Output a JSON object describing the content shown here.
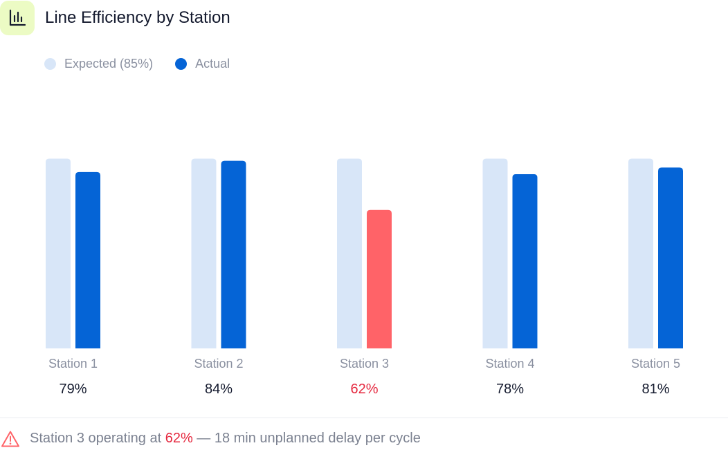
{
  "header": {
    "title": "Line Efficiency by Station",
    "icon": "bar-chart-icon"
  },
  "legend": {
    "items": [
      {
        "label": "Expected (85%)",
        "color": "#d8e6f8"
      },
      {
        "label": "Actual",
        "color": "#0564d6"
      }
    ]
  },
  "colors": {
    "expected": "#d8e6f8",
    "actual": "#0564d6",
    "alert": "#ff6368",
    "alert_text": "#e5283f",
    "label_text": "#8a90a0",
    "value_text": "#141a2e"
  },
  "chart_data": {
    "type": "bar",
    "categories": [
      "Station 1",
      "Station 2",
      "Station 3",
      "Station 4",
      "Station 5"
    ],
    "series": [
      {
        "name": "Expected (85%)",
        "values": [
          85,
          85,
          85,
          85,
          85
        ]
      },
      {
        "name": "Actual",
        "values": [
          79,
          84,
          62,
          78,
          81
        ]
      }
    ],
    "value_labels": [
      "79%",
      "84%",
      "62%",
      "78%",
      "81%"
    ],
    "highlight": [
      false,
      false,
      true,
      false,
      false
    ],
    "title": "Line Efficiency by Station",
    "ylim": [
      0,
      100
    ],
    "grid": false,
    "legend_position": "top-left"
  },
  "footer": {
    "icon": "warning-icon",
    "prefix": "Station 3 operating at ",
    "highlight": "62%",
    "suffix": " — 18 min unplanned delay per cycle"
  }
}
